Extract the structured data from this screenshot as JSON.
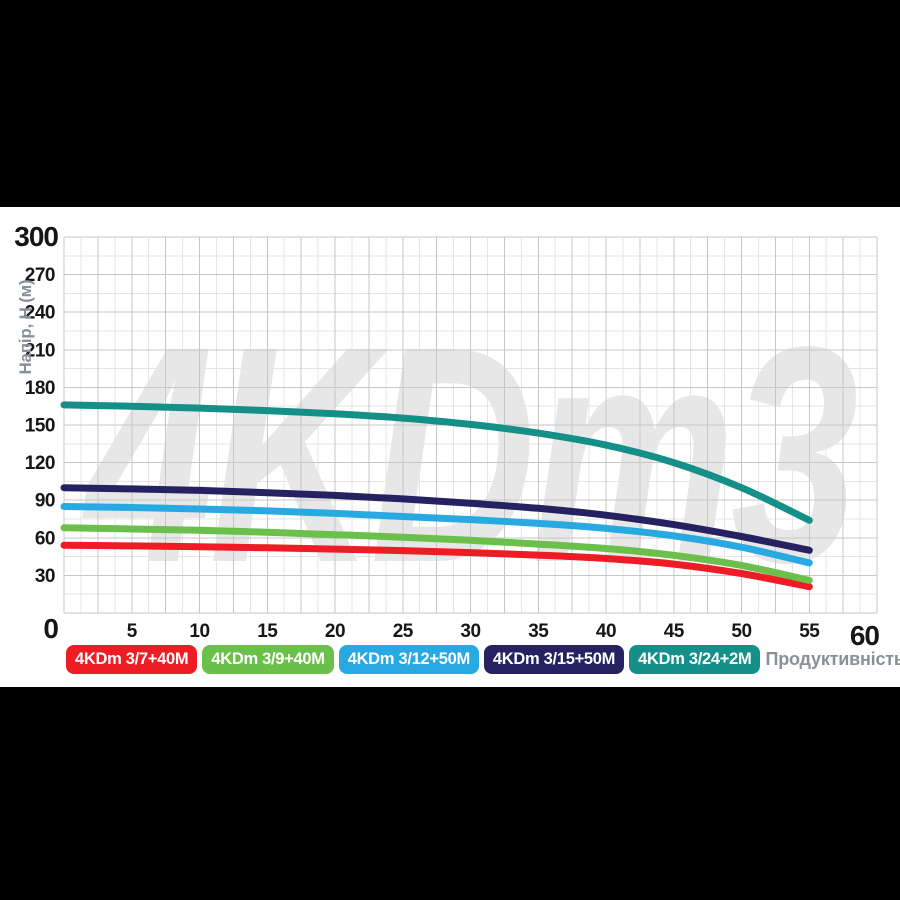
{
  "page": {
    "background": "#000000",
    "panel_background": "#FFFFFF"
  },
  "colors": {
    "grid_major": "#C7C7C7",
    "grid_minor": "#E5E5E5",
    "tick_label": "#161616",
    "axis_title": "#8A9096",
    "watermark": "#E7E7E7",
    "legend_text": "#FFFFFF"
  },
  "chart_data": {
    "type": "line",
    "watermark": "4KDm3",
    "xlabel": "Продуктивність, Q (л/хв)",
    "ylabel": "Напір, H (м)",
    "xlim": [
      0,
      60
    ],
    "ylim": [
      0,
      300
    ],
    "x_ticks": [
      0,
      5,
      10,
      15,
      20,
      25,
      30,
      35,
      40,
      45,
      50,
      55,
      60
    ],
    "y_ticks": [
      0,
      30,
      60,
      90,
      120,
      150,
      180,
      210,
      240,
      270,
      300
    ],
    "grid": "major+minor",
    "x_minor_step": 1.25,
    "y_minor_step": 15,
    "legend_position": "bottom",
    "x": [
      0,
      5,
      10,
      15,
      20,
      25,
      30,
      35,
      40,
      45,
      50,
      55
    ],
    "series": [
      {
        "name": "4KDm 3/7+40M",
        "color": "#EE1C25",
        "values": [
          54,
          53.5,
          52.8,
          52,
          51,
          49.8,
          48.2,
          46.2,
          43.5,
          39,
          31.5,
          21
        ]
      },
      {
        "name": "4KDm 3/9+40M",
        "color": "#6BBF4B",
        "values": [
          68,
          67,
          66,
          64.5,
          62.5,
          60.5,
          58,
          55,
          51.5,
          46,
          38,
          26
        ]
      },
      {
        "name": "4KDm 3/12+50M",
        "color": "#29A9E1",
        "values": [
          85,
          84.2,
          83,
          81.5,
          79.5,
          77,
          74.5,
          71.5,
          67.5,
          61.5,
          52.5,
          40
        ]
      },
      {
        "name": "4KDm 3/15+50M",
        "color": "#262262",
        "values": [
          100,
          99,
          97.8,
          96,
          93.8,
          91,
          87.5,
          83.5,
          78,
          70.5,
          61,
          50
        ]
      },
      {
        "name": "4KDm 3/24+2M",
        "color": "#149089",
        "values": [
          166,
          165,
          163.5,
          161.5,
          159,
          155.5,
          150.5,
          143.5,
          134,
          120,
          100,
          74
        ]
      }
    ]
  }
}
